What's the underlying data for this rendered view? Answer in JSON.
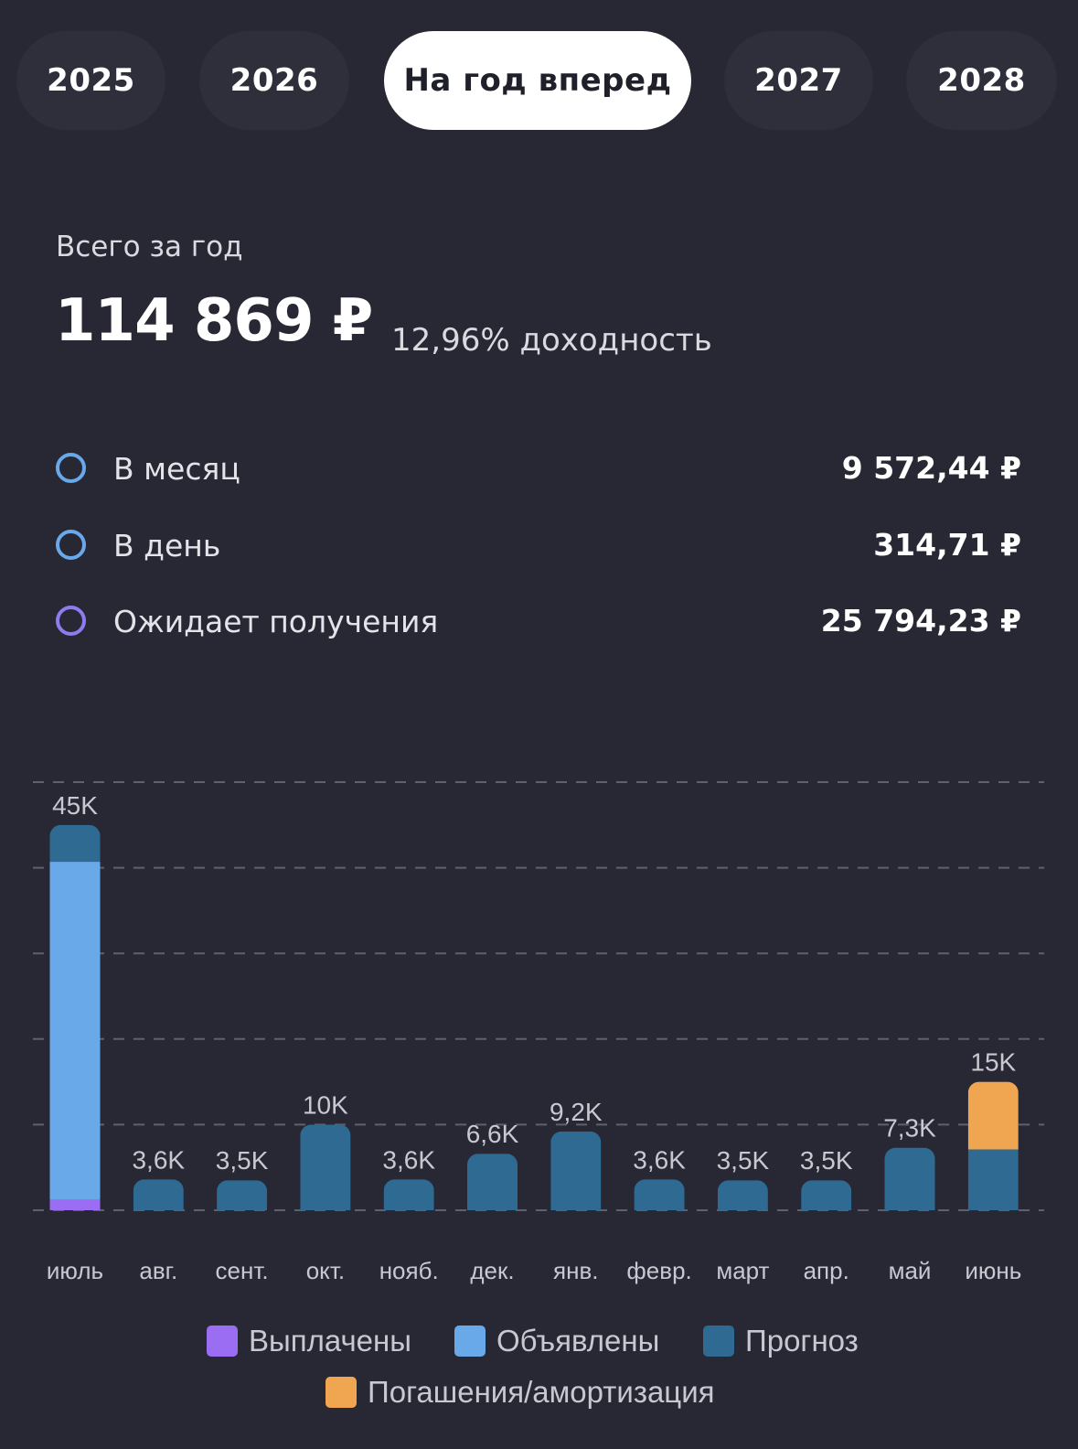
{
  "tabs": [
    {
      "label": "2025",
      "active": false
    },
    {
      "label": "2026",
      "active": false
    },
    {
      "label": "На год вперед",
      "active": true
    },
    {
      "label": "2027",
      "active": false
    },
    {
      "label": "2028",
      "active": false
    }
  ],
  "summary": {
    "total_label": "Всего за год",
    "total_value": "114 869 ₽",
    "yield_text": "12,96% доходность"
  },
  "stats": [
    {
      "label": "В месяц",
      "value": "9 572,44 ₽",
      "ring_color": "#69a8e9"
    },
    {
      "label": "В день",
      "value": "314,71 ₽",
      "ring_color": "#69a8e9"
    },
    {
      "label": "Ожидает получения",
      "value": "25 794,23 ₽",
      "ring_color": "#8b7cf0"
    }
  ],
  "colors": {
    "paid": "#9a6df3",
    "announced": "#69a8e9",
    "forecast": "#2f6a92",
    "redemption": "#f0a550",
    "grid": "#5e606d",
    "background": "#272833"
  },
  "chart_data": {
    "type": "bar",
    "stacked": true,
    "categories": [
      "июль",
      "авг.",
      "сент.",
      "окт.",
      "нояб.",
      "дек.",
      "янв.",
      "февр.",
      "март",
      "апр.",
      "май",
      "июнь"
    ],
    "top_labels": [
      "45K",
      "3,6K",
      "3,5K",
      "10K",
      "3,6K",
      "6,6K",
      "9,2K",
      "3,6K",
      "3,5K",
      "3,5K",
      "7,3K",
      "15K"
    ],
    "series": [
      {
        "name": "Выплачены",
        "key": "paid",
        "values": [
          1.2,
          0,
          0,
          0,
          0,
          0,
          0,
          0,
          0,
          0,
          0,
          0
        ]
      },
      {
        "name": "Объявлены",
        "key": "announced",
        "values": [
          39.5,
          0,
          0,
          0,
          0,
          0,
          0,
          0,
          0,
          0,
          0,
          0
        ]
      },
      {
        "name": "Прогноз",
        "key": "forecast",
        "values": [
          4.3,
          3.6,
          3.5,
          10,
          3.6,
          6.6,
          9.2,
          3.6,
          3.5,
          3.5,
          7.3,
          7.1
        ]
      },
      {
        "name": "Погашения/амортизация",
        "key": "redemption",
        "values": [
          0,
          0,
          0,
          0,
          0,
          0,
          0,
          0,
          0,
          0,
          0,
          7.9
        ]
      }
    ],
    "ylim": [
      0,
      50
    ],
    "grid": true,
    "grid_style": "dashed",
    "legend_position": "bottom"
  },
  "legend": [
    {
      "label": "Выплачены",
      "color": "#9a6df3"
    },
    {
      "label": "Объявлены",
      "color": "#69a8e9"
    },
    {
      "label": "Прогноз",
      "color": "#2f6a92"
    },
    {
      "label": "Погашения/амортизация",
      "color": "#f0a550"
    }
  ]
}
